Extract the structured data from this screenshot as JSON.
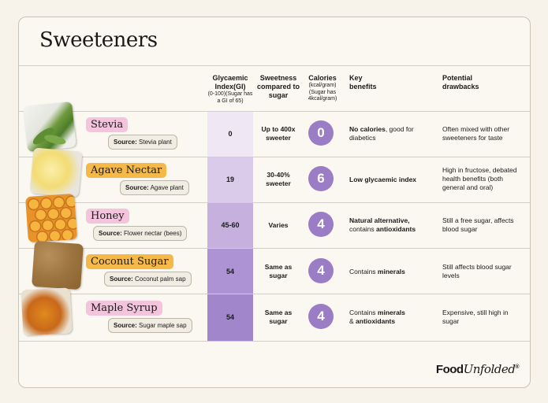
{
  "title": "Sweeteners",
  "headers": {
    "gi": "Glycaemic Index(GI)",
    "gi_sub": "(0-100)(Sugar has a GI of 65)",
    "sweetness": "Sweetness compared to sugar",
    "calories": "Calories",
    "calories_sub": "(kcal/gram) (Sugar has 4kcal/gram)",
    "benefits": "Key benefits",
    "drawbacks": "Potential drawbacks"
  },
  "rows": [
    {
      "name": "Stevia",
      "source_label": "Source:",
      "source": "Stevia plant",
      "gi": "0",
      "sweetness": "Up to 400x sweeter",
      "calories": "0",
      "benefit_bold": "No calories",
      "benefit_rest": ", good for diabetics",
      "drawbacks": "Often mixed with other sweeteners for taste"
    },
    {
      "name": "Agave Nectar",
      "source_label": "Source:",
      "source": "Agave plant",
      "gi": "19",
      "sweetness": "30-40% sweeter",
      "calories": "6",
      "benefit_bold": "Low glycaemic index",
      "benefit_rest": "",
      "drawbacks": "High in fructose, debated health benefits (both general and oral)"
    },
    {
      "name": "Honey",
      "source_label": "Source:",
      "source": "Flower nectar (bees)",
      "gi": "45-60",
      "sweetness": "Varies",
      "calories": "4",
      "benefit_bold": "Natural alternative,",
      "benefit_mid": "contains ",
      "benefit_bold2": "antioxidants",
      "drawbacks": "Still a free sugar, affects blood sugar"
    },
    {
      "name": "Coconut Sugar",
      "source_label": "Source:",
      "source": "Coconut palm sap",
      "gi": "54",
      "sweetness": "Same as sugar",
      "calories": "4",
      "benefit_pre": "Contains ",
      "benefit_bold": "minerals",
      "drawbacks": "Still affects blood sugar levels"
    },
    {
      "name": "Maple Syrup",
      "source_label": "Source:",
      "source": "Sugar maple sap",
      "gi": "54",
      "sweetness": "Same as sugar",
      "calories": "4",
      "benefit_pre": "Contains ",
      "benefit_bold": "minerals",
      "benefit_mid": "& ",
      "benefit_bold2": "antioxidants",
      "drawbacks": "Expensive, still high in sugar"
    }
  ],
  "logo": {
    "food": "Food",
    "unfolded": "Unfolded",
    "mark": "®"
  },
  "colors": {
    "pink": "#f4c3dc",
    "orange": "#f5b94a",
    "purple": "#9a7dc4"
  }
}
